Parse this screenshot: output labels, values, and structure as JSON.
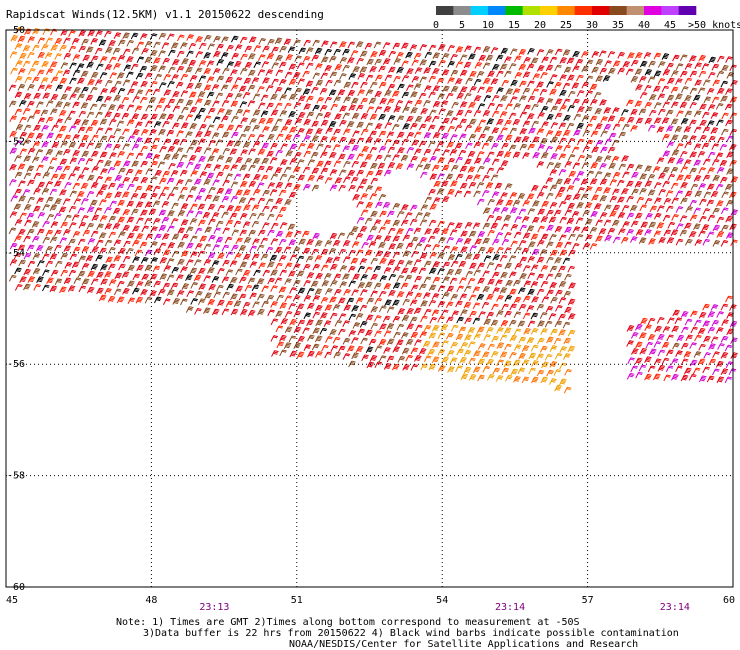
{
  "title": "Rapidscat Winds(12.5KM) v1.1 20150622 descending",
  "legend": {
    "ticks": [
      "0",
      "5",
      "10",
      "15",
      "20",
      "25",
      "30",
      "35",
      "40",
      "45"
    ],
    "end_label": ">50 knots",
    "colors": [
      "#404040",
      "#8c8c8c",
      "#00d0ff",
      "#0088ff",
      "#00bb00",
      "#b0e000",
      "#ffd000",
      "#ff8800",
      "#ff3000",
      "#e00000",
      "#8a4a20",
      "#c09070",
      "#e000e0",
      "#c040ff",
      "#6000b0"
    ]
  },
  "map": {
    "lon_labels": [
      "45",
      "48",
      "51",
      "54",
      "57",
      "60"
    ],
    "lon_values": [
      45,
      48,
      51,
      54,
      57,
      60
    ],
    "lat_labels": [
      "-50",
      "-52",
      "-54",
      "-56",
      "-58",
      "-60"
    ],
    "lat_values": [
      -50,
      -52,
      -54,
      -56,
      -58,
      -60
    ],
    "lon_range": [
      45,
      60
    ],
    "lat_range": [
      -50,
      -60
    ],
    "grid": "dotted",
    "times": [
      {
        "label": "23:13",
        "lon": 49.3
      },
      {
        "label": "23:14",
        "lon": 55.4
      },
      {
        "label": "23:14",
        "lon": 58.8
      }
    ]
  },
  "notes": {
    "line1": "Note: 1) Times are GMT 2)Times along bottom correspond to measurement at -50S",
    "line2": "3)Data buffer is 22 hrs from 20150622 4) Black wind barbs indicate possible contamination",
    "line3": "NOAA/NESDIS/Center for Satellite Applications and Research"
  }
}
